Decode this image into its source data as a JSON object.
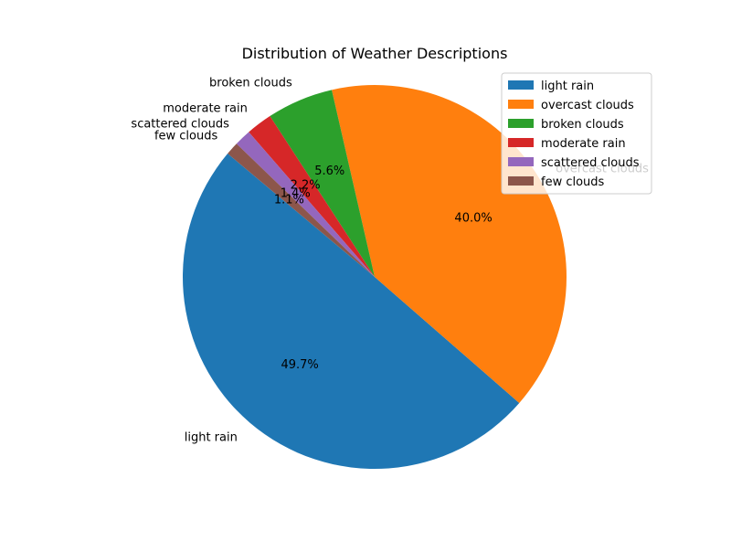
{
  "chart_data": {
    "type": "pie",
    "title": "Distribution of Weather Descriptions",
    "categories": [
      "light rain",
      "overcast clouds",
      "broken clouds",
      "moderate rain",
      "scattered clouds",
      "few clouds"
    ],
    "values": [
      49.7,
      40.0,
      5.6,
      2.2,
      1.4,
      1.1
    ],
    "value_labels": [
      "49.7%",
      "40.0%",
      "5.6%",
      "2.2%",
      "1.4%",
      "1.1%"
    ],
    "colors": [
      "#1f77b4",
      "#ff7f0e",
      "#2ca02c",
      "#d62728",
      "#9467bd",
      "#8c564b"
    ],
    "start_angle_deg": 140,
    "direction": "counterclockwise",
    "legend_position": "top-right"
  }
}
